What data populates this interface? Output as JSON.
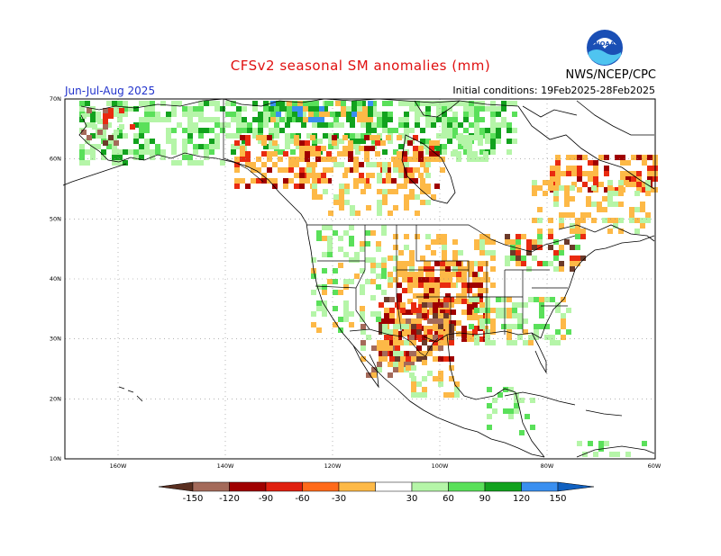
{
  "title": "CFSv2 seasonal SM anomalies (mm)",
  "period": "Jun-Jul-Aug 2025",
  "initial_conditions": "Initial conditions: 19Feb2025-28Feb2025",
  "organization": "NWS/NCEP/CPC",
  "logo_text": "NOAA",
  "lat_labels": [
    "70N",
    "60N",
    "50N",
    "40N",
    "30N",
    "20N",
    "10N"
  ],
  "lon_labels": [
    "160W",
    "140W",
    "120W",
    "100W",
    "80W",
    "60W"
  ],
  "colorbar": {
    "labels": [
      "-150",
      "-120",
      "-90",
      "-60",
      "-30",
      "30",
      "60",
      "90",
      "120",
      "150"
    ],
    "colors": [
      "#5a2f20",
      "#a46a5a",
      "#a00000",
      "#e02010",
      "#ff6a1a",
      "#fdb947",
      "#ffffff",
      "#b5f5a8",
      "#5ae05a",
      "#12a21e",
      "#3a8ff0",
      "#1060c0"
    ]
  },
  "legend_bins": {
    "dark_brown": "#6b3a2a",
    "brown": "#a46a5a",
    "dark_red": "#a00000",
    "red": "#e92a10",
    "orange": "#fdb947",
    "light_green": "#b5f5a8",
    "green": "#5ae05a",
    "dark_green": "#12a21e",
    "blue": "#3a8ff0"
  }
}
